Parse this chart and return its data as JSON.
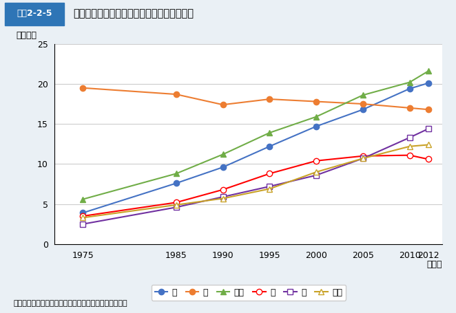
{
  "title": "図表2-2-5　がんの部位別にみた死亡者数の推移（女性）",
  "ylabel": "（千人）",
  "xlabel_suffix": "（年）",
  "source": "資料：厚生労働省大臣官房統計情報部「人口動態統計」",
  "years": [
    1975,
    1985,
    1990,
    1995,
    2000,
    2005,
    2010,
    2012
  ],
  "series": {
    "肺": {
      "values": [
        3.9,
        7.6,
        9.6,
        12.2,
        14.7,
        16.8,
        19.4,
        20.1
      ],
      "color": "#4472C4",
      "marker": "o",
      "marker_filled": true
    },
    "胃": {
      "values": [
        19.5,
        18.7,
        17.4,
        18.1,
        17.8,
        17.5,
        17.0,
        16.8
      ],
      "color": "#ED7D31",
      "marker": "o",
      "marker_filled": true
    },
    "大腸": {
      "values": [
        5.6,
        8.8,
        11.2,
        13.9,
        15.9,
        18.6,
        20.2,
        21.6
      ],
      "color": "#70AD47",
      "marker": "^",
      "marker_filled": true
    },
    "肝": {
      "values": [
        3.5,
        5.2,
        6.8,
        8.8,
        10.4,
        11.0,
        11.1,
        10.6
      ],
      "color": "#FF0000",
      "marker": "o",
      "marker_filled": false
    },
    "膵": {
      "values": [
        2.5,
        4.6,
        5.9,
        7.2,
        8.6,
        10.7,
        13.3,
        14.4
      ],
      "color": "#7030A0",
      "marker": "s",
      "marker_filled": false
    },
    "乳房": {
      "values": [
        3.3,
        4.9,
        5.7,
        6.9,
        9.0,
        10.7,
        12.2,
        12.4
      ],
      "color": "#C9A227",
      "marker": "^",
      "marker_filled": false
    }
  },
  "ylim": [
    0,
    25
  ],
  "yticks": [
    0,
    5,
    10,
    15,
    20,
    25
  ],
  "background_color": "#EAF0F5",
  "plot_bg_color": "#FFFFFF",
  "header_color": "#1A5276",
  "header_text_color": "#FFFFFF",
  "title_box_color": "#2E86AB"
}
